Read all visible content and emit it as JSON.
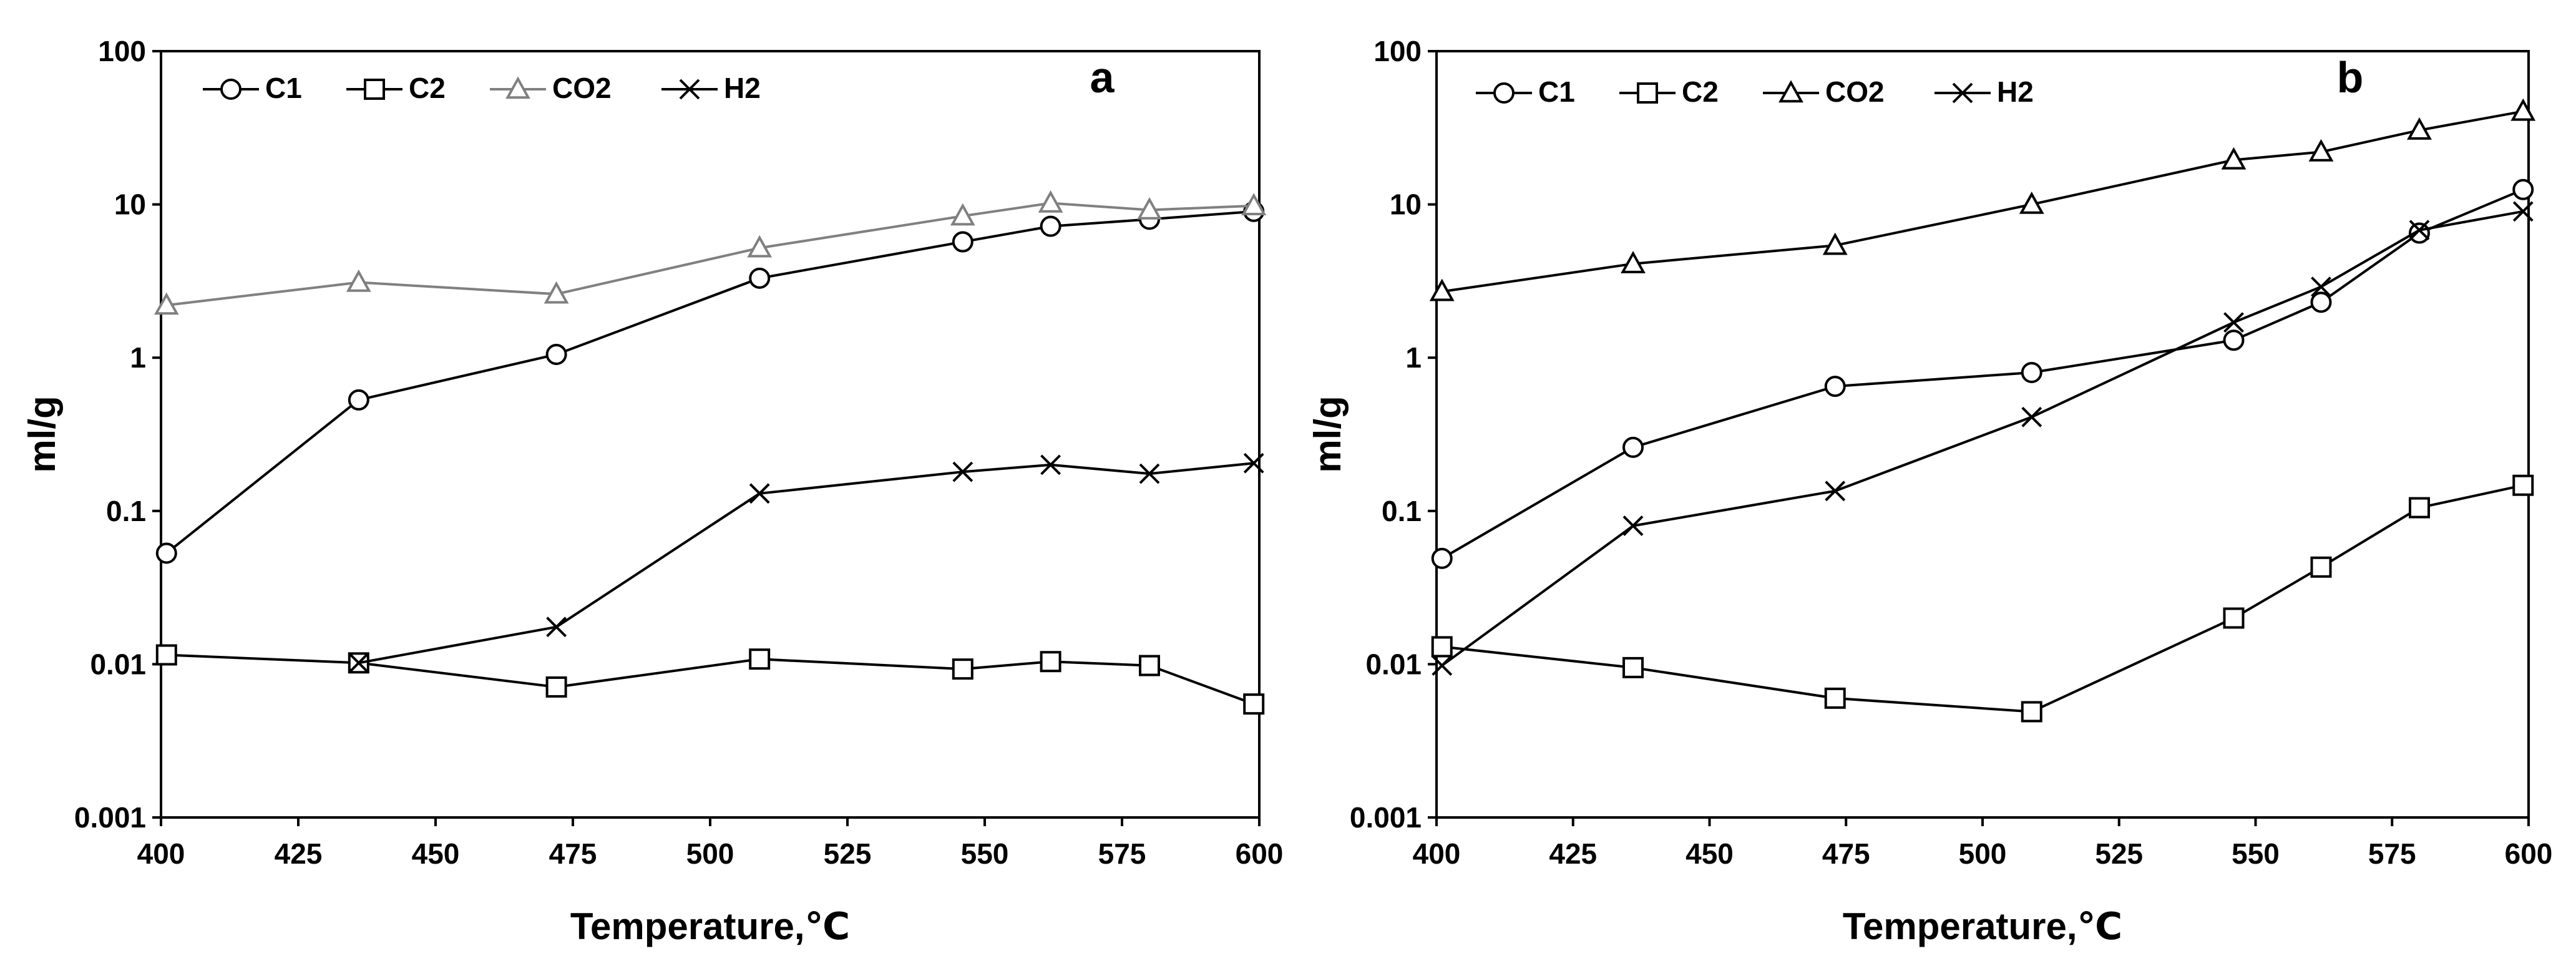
{
  "chart_data": [
    {
      "type": "line",
      "panel_label": "a",
      "xlabel": "Temperature,℃",
      "ylabel": "ml/g",
      "x_ticks": [
        400,
        425,
        450,
        475,
        500,
        525,
        550,
        575,
        600
      ],
      "y_ticks": [
        0.001,
        0.01,
        0.1,
        1,
        10,
        100
      ],
      "y_tick_labels": [
        "0.001",
        "0.01",
        "0.1",
        "1",
        "10",
        "100"
      ],
      "xlim": [
        400,
        600
      ],
      "ylim": [
        0.001,
        100
      ],
      "yscale": "log",
      "legend_position": "top-left",
      "series": [
        {
          "name": "C1",
          "marker": "circle",
          "color": "#000000",
          "x": [
            401,
            436,
            472,
            509,
            546,
            562,
            580,
            599
          ],
          "y": [
            0.053,
            0.53,
            1.05,
            3.3,
            5.7,
            7.2,
            8.0,
            9.0
          ]
        },
        {
          "name": "C2",
          "marker": "square",
          "color": "#000000",
          "x": [
            401,
            436,
            472,
            509,
            546,
            562,
            580,
            599
          ],
          "y": [
            0.0115,
            0.0102,
            0.0071,
            0.0108,
            0.0093,
            0.0104,
            0.0098,
            0.0055
          ]
        },
        {
          "name": "CO2",
          "marker": "triangle",
          "color": "#808080",
          "x": [
            401,
            436,
            472,
            509,
            546,
            562,
            580,
            599
          ],
          "y": [
            2.2,
            3.1,
            2.6,
            5.2,
            8.4,
            10.2,
            9.2,
            9.8
          ]
        },
        {
          "name": "H2",
          "marker": "x",
          "color": "#000000",
          "x": [
            436,
            472,
            509,
            546,
            562,
            580,
            599
          ],
          "y": [
            0.0102,
            0.0175,
            0.13,
            0.18,
            0.2,
            0.175,
            0.205
          ]
        }
      ]
    },
    {
      "type": "line",
      "panel_label": "b",
      "xlabel": "Temperature,℃",
      "ylabel": "ml/g",
      "x_ticks": [
        400,
        425,
        450,
        475,
        500,
        525,
        550,
        575,
        600
      ],
      "y_ticks": [
        0.001,
        0.01,
        0.1,
        1,
        10,
        100
      ],
      "y_tick_labels": [
        "0.001",
        "0.01",
        "0.1",
        "1",
        "10",
        "100"
      ],
      "xlim": [
        400,
        600
      ],
      "ylim": [
        0.001,
        100
      ],
      "yscale": "log",
      "legend_position": "top-left",
      "series": [
        {
          "name": "C1",
          "marker": "circle",
          "color": "#000000",
          "x": [
            401,
            436,
            473,
            509,
            546,
            562,
            580,
            599
          ],
          "y": [
            0.049,
            0.26,
            0.65,
            0.8,
            1.3,
            2.3,
            6.5,
            12.5
          ]
        },
        {
          "name": "C2",
          "marker": "square",
          "color": "#000000",
          "x": [
            401,
            436,
            473,
            509,
            546,
            562,
            580,
            599
          ],
          "y": [
            0.013,
            0.0095,
            0.006,
            0.0049,
            0.02,
            0.043,
            0.105,
            0.147
          ]
        },
        {
          "name": "CO2",
          "marker": "triangle",
          "color": "#000000",
          "x": [
            401,
            436,
            473,
            509,
            546,
            562,
            580,
            599
          ],
          "y": [
            2.7,
            4.1,
            5.4,
            10.0,
            19.5,
            22.0,
            30.5,
            40.5
          ]
        },
        {
          "name": "H2",
          "marker": "x",
          "color": "#000000",
          "x": [
            401,
            436,
            473,
            509,
            546,
            562,
            580,
            599
          ],
          "y": [
            0.0098,
            0.08,
            0.135,
            0.41,
            1.7,
            2.9,
            6.8,
            9.0
          ]
        }
      ]
    }
  ]
}
